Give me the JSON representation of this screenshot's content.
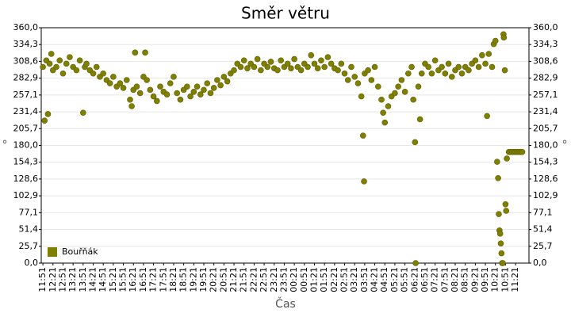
{
  "chart_data": {
    "type": "scatter",
    "title": "Směr větru",
    "x_label": "Čas",
    "y_label": "°",
    "legend": "bottom-left",
    "grid": true,
    "x": [
      0,
      5,
      10,
      15,
      20,
      25,
      30,
      40,
      50,
      60,
      70,
      80,
      90,
      100,
      110,
      120,
      125,
      130,
      140,
      150,
      160,
      170,
      180,
      190,
      200,
      210,
      220,
      230,
      240,
      250,
      260,
      265,
      270,
      275,
      280,
      290,
      300,
      305,
      310,
      320,
      330,
      340,
      350,
      360,
      370,
      380,
      390,
      400,
      410,
      420,
      430,
      440,
      450,
      460,
      470,
      480,
      490,
      500,
      510,
      520,
      530,
      540,
      550,
      560,
      570,
      580,
      590,
      600,
      610,
      620,
      630,
      640,
      650,
      660,
      670,
      680,
      690,
      700,
      710,
      720,
      730,
      740,
      750,
      760,
      770,
      780,
      790,
      800,
      810,
      820,
      830,
      840,
      850,
      860,
      870,
      880,
      890,
      900,
      910,
      920,
      930,
      940,
      950,
      955,
      958,
      960,
      970,
      980,
      990,
      1000,
      1010,
      1015,
      1020,
      1030,
      1040,
      1050,
      1060,
      1070,
      1080,
      1090,
      1100,
      1105,
      1110,
      1112,
      1120,
      1125,
      1130,
      1140,
      1150,
      1160,
      1170,
      1180,
      1190,
      1200,
      1210,
      1220,
      1230,
      1240,
      1250,
      1260,
      1270,
      1280,
      1290,
      1300,
      1310,
      1320,
      1325,
      1330,
      1340,
      1345,
      1350,
      1355,
      1358,
      1360,
      1362,
      1364,
      1366,
      1368,
      1370,
      1372,
      1374,
      1375,
      1378,
      1380,
      1382,
      1384,
      1390,
      1395,
      1400,
      1405,
      1410,
      1415,
      1420,
      1425,
      1430
    ],
    "series": [
      {
        "name": "Bouřňák",
        "color": "#808000",
        "values": [
          300,
          218,
          310,
          228,
          305,
          320,
          295,
          300,
          310,
          290,
          305,
          315,
          300,
          295,
          310,
          230,
          300,
          305,
          295,
          290,
          300,
          285,
          290,
          280,
          275,
          285,
          270,
          275,
          268,
          280,
          250,
          240,
          265,
          322,
          270,
          260,
          285,
          322,
          280,
          265,
          255,
          248,
          270,
          262,
          258,
          275,
          285,
          260,
          250,
          265,
          270,
          255,
          262,
          270,
          258,
          265,
          275,
          260,
          268,
          280,
          272,
          285,
          278,
          290,
          295,
          305,
          300,
          310,
          298,
          305,
          300,
          312,
          295,
          305,
          300,
          308,
          298,
          295,
          310,
          300,
          305,
          298,
          312,
          300,
          295,
          305,
          300,
          318,
          305,
          298,
          310,
          300,
          315,
          305,
          298,
          295,
          305,
          290,
          280,
          300,
          285,
          275,
          255,
          195,
          125,
          290,
          295,
          280,
          300,
          270,
          250,
          230,
          215,
          240,
          255,
          260,
          270,
          280,
          262,
          290,
          300,
          250,
          185,
          0,
          270,
          220,
          290,
          305,
          300,
          290,
          310,
          295,
          300,
          290,
          305,
          285,
          295,
          300,
          290,
          300,
          295,
          305,
          310,
          300,
          318,
          305,
          225,
          320,
          300,
          335,
          340,
          155,
          130,
          75,
          50,
          45,
          30,
          15,
          0,
          0,
          350,
          345,
          295,
          90,
          80,
          160,
          170,
          170,
          170,
          170,
          170,
          170,
          170,
          170,
          170
        ]
      }
    ],
    "xlim": [
      -5,
      1450
    ],
    "xticks": [
      {
        "value": 0,
        "label": "11:51"
      },
      {
        "value": 30,
        "label": "12:21"
      },
      {
        "value": 60,
        "label": "12:51"
      },
      {
        "value": 90,
        "label": "13:21"
      },
      {
        "value": 120,
        "label": "13:51"
      },
      {
        "value": 150,
        "label": "14:21"
      },
      {
        "value": 180,
        "label": "14:51"
      },
      {
        "value": 210,
        "label": "15:21"
      },
      {
        "value": 240,
        "label": "15:51"
      },
      {
        "value": 270,
        "label": "16:21"
      },
      {
        "value": 300,
        "label": "16:51"
      },
      {
        "value": 330,
        "label": "17:21"
      },
      {
        "value": 360,
        "label": "17:51"
      },
      {
        "value": 390,
        "label": "18:21"
      },
      {
        "value": 420,
        "label": "18:51"
      },
      {
        "value": 450,
        "label": "19:21"
      },
      {
        "value": 480,
        "label": "19:51"
      },
      {
        "value": 510,
        "label": "20:21"
      },
      {
        "value": 540,
        "label": "20:51"
      },
      {
        "value": 570,
        "label": "21:21"
      },
      {
        "value": 600,
        "label": "21:51"
      },
      {
        "value": 630,
        "label": "22:21"
      },
      {
        "value": 660,
        "label": "22:51"
      },
      {
        "value": 690,
        "label": "23:21"
      },
      {
        "value": 720,
        "label": "23:51"
      },
      {
        "value": 750,
        "label": "00:21"
      },
      {
        "value": 780,
        "label": "00:51"
      },
      {
        "value": 810,
        "label": "01:21"
      },
      {
        "value": 840,
        "label": "01:51"
      },
      {
        "value": 870,
        "label": "02:21"
      },
      {
        "value": 900,
        "label": "02:51"
      },
      {
        "value": 930,
        "label": "03:21"
      },
      {
        "value": 960,
        "label": "03:51"
      },
      {
        "value": 990,
        "label": "04:21"
      },
      {
        "value": 1020,
        "label": "04:51"
      },
      {
        "value": 1050,
        "label": "05:21"
      },
      {
        "value": 1080,
        "label": "05:51"
      },
      {
        "value": 1110,
        "label": "06:21"
      },
      {
        "value": 1140,
        "label": "06:51"
      },
      {
        "value": 1170,
        "label": "07:21"
      },
      {
        "value": 1200,
        "label": "07:51"
      },
      {
        "value": 1230,
        "label": "08:21"
      },
      {
        "value": 1260,
        "label": "08:51"
      },
      {
        "value": 1290,
        "label": "09:21"
      },
      {
        "value": 1320,
        "label": "09:51"
      },
      {
        "value": 1350,
        "label": "10:21"
      },
      {
        "value": 1380,
        "label": "10:51"
      },
      {
        "value": 1410,
        "label": "11:21"
      }
    ],
    "ylim": [
      0,
      360
    ],
    "yticks": [
      {
        "value": 0,
        "label": "0,0"
      },
      {
        "value": 25.7,
        "label": "25,7"
      },
      {
        "value": 51.4,
        "label": "51,4"
      },
      {
        "value": 77.1,
        "label": "77,1"
      },
      {
        "value": 102.9,
        "label": "102,9"
      },
      {
        "value": 128.6,
        "label": "128,6"
      },
      {
        "value": 154.3,
        "label": "154,3"
      },
      {
        "value": 180,
        "label": "180,0"
      },
      {
        "value": 205.7,
        "label": "205,7"
      },
      {
        "value": 231.4,
        "label": "231,4"
      },
      {
        "value": 257.1,
        "label": "257,1"
      },
      {
        "value": 282.9,
        "label": "282,9"
      },
      {
        "value": 308.6,
        "label": "308,6"
      },
      {
        "value": 334.3,
        "label": "334,3"
      },
      {
        "value": 360,
        "label": "360,0"
      }
    ]
  }
}
